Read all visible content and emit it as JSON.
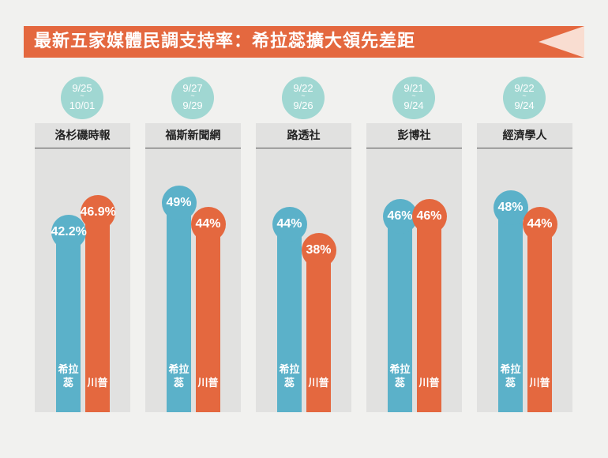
{
  "title": "最新五家媒體民調支持率：希拉蕊擴大領先差距",
  "colors": {
    "clinton": "#5bb1c9",
    "trump": "#e4683f",
    "title_bar": "#e4683f",
    "date_badge": "#a0d7d2"
  },
  "candidate_labels": {
    "clinton": "希拉蕊",
    "trump": "川普"
  },
  "polls": [
    {
      "source": "洛杉磯時報",
      "date_start": "9/25",
      "tilde": "~",
      "date_end": "10/01",
      "clinton_label": "42.2%",
      "trump_label": "46.9%"
    },
    {
      "source": "福斯新聞網",
      "date_start": "9/27",
      "tilde": "~",
      "date_end": "9/29",
      "clinton_label": "49%",
      "trump_label": "44%"
    },
    {
      "source": "路透社",
      "date_start": "9/22",
      "tilde": "~",
      "date_end": "9/26",
      "clinton_label": "44%",
      "trump_label": "38%"
    },
    {
      "source": "彭博社",
      "date_start": "9/21",
      "tilde": "~",
      "date_end": "9/24",
      "clinton_label": "46%",
      "trump_label": "46%"
    },
    {
      "source": "經濟學人",
      "date_start": "9/22",
      "tilde": "~",
      "date_end": "9/24",
      "clinton_label": "48%",
      "trump_label": "44%"
    }
  ],
  "chart_data": {
    "type": "bar",
    "title": "最新五家媒體民調支持率：希拉蕊擴大領先差距",
    "categories": [
      "洛杉磯時報",
      "福斯新聞網",
      "路透社",
      "彭博社",
      "經濟學人"
    ],
    "date_ranges": [
      "9/25~10/01",
      "9/27~9/29",
      "9/22~9/26",
      "9/21~9/24",
      "9/22~9/24"
    ],
    "series": [
      {
        "name": "希拉蕊",
        "values": [
          42.2,
          49,
          44,
          46,
          48
        ]
      },
      {
        "name": "川普",
        "values": [
          46.9,
          44,
          38,
          46,
          44
        ]
      }
    ],
    "unit": "%"
  }
}
